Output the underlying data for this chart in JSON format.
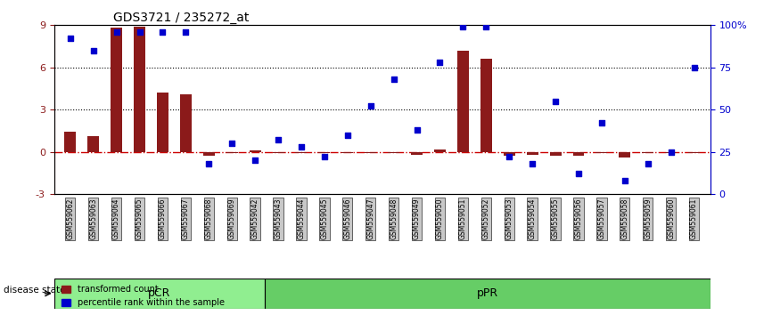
{
  "title": "GDS3721 / 235272_at",
  "samples": [
    "GSM559062",
    "GSM559063",
    "GSM559064",
    "GSM559065",
    "GSM559066",
    "GSM559067",
    "GSM559068",
    "GSM559069",
    "GSM559042",
    "GSM559043",
    "GSM559044",
    "GSM559045",
    "GSM559046",
    "GSM559047",
    "GSM559048",
    "GSM559049",
    "GSM559050",
    "GSM559051",
    "GSM559052",
    "GSM559053",
    "GSM559054",
    "GSM559055",
    "GSM559056",
    "GSM559057",
    "GSM559058",
    "GSM559059",
    "GSM559060",
    "GSM559061"
  ],
  "transformed_count": [
    1.4,
    1.1,
    8.8,
    8.9,
    4.2,
    4.1,
    -0.3,
    -0.1,
    0.1,
    -0.1,
    -0.1,
    -0.1,
    -0.1,
    -0.1,
    -0.1,
    -0.2,
    0.15,
    7.2,
    6.6,
    -0.3,
    -0.2,
    -0.3,
    -0.3,
    -0.1,
    -0.4,
    -0.1,
    -0.1,
    -0.1
  ],
  "percentile_rank": [
    92,
    85,
    96,
    96,
    96,
    96,
    18,
    30,
    20,
    32,
    28,
    22,
    35,
    52,
    68,
    38,
    78,
    99,
    99,
    22,
    18,
    55,
    12,
    42,
    8,
    18,
    25,
    75
  ],
  "pCR_count": 9,
  "pPR_count": 19,
  "bar_color": "#8B1A1A",
  "dot_color": "#0000CD",
  "zero_line_color": "#CC0000",
  "grid_color": "#000000",
  "pCR_color": "#90EE90",
  "pPR_color": "#66CD66",
  "label_bg_color": "#C8C8C8",
  "ylim_left": [
    -3,
    9
  ],
  "ylim_right": [
    0,
    100
  ],
  "yticks_left": [
    -3,
    0,
    3,
    6,
    9
  ],
  "yticks_right": [
    0,
    25,
    50,
    75,
    100
  ],
  "ytick_labels_right": [
    "0",
    "25",
    "50",
    "75",
    "100%"
  ]
}
